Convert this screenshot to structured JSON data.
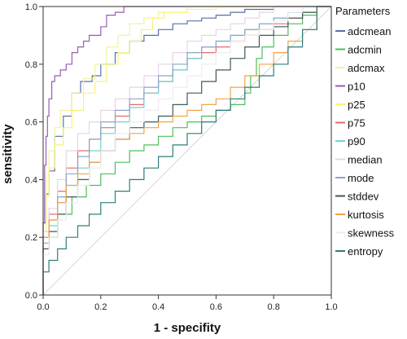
{
  "chart_data": {
    "type": "line",
    "xlabel": "1 - specifity",
    "ylabel": "sensitivity",
    "xlim": [
      0,
      1
    ],
    "ylim": [
      0,
      1
    ],
    "x_ticks": [
      "0.0",
      "0.2",
      "0.4",
      "0.6",
      "0.8",
      "1.0"
    ],
    "y_ticks": [
      "0.0",
      "0.2",
      "0.4",
      "0.6",
      "0.8",
      "1.0"
    ],
    "grid": false,
    "legend": {
      "title": "Parameters",
      "position": "right"
    },
    "reference_line": {
      "x": [
        0,
        1
      ],
      "y": [
        0,
        1
      ],
      "color": "#d6d6d6"
    },
    "series": [
      {
        "name": "adcmean",
        "color": "#5a6fa8",
        "x": [
          0,
          0.01,
          0.02,
          0.04,
          0.07,
          0.1,
          0.13,
          0.17,
          0.2,
          0.25,
          0.3,
          0.35,
          0.4,
          0.45,
          0.5,
          0.55,
          0.6,
          0.65,
          0.7,
          0.8,
          0.9,
          1
        ],
        "y": [
          0,
          0.25,
          0.35,
          0.43,
          0.55,
          0.62,
          0.7,
          0.74,
          0.76,
          0.8,
          0.84,
          0.88,
          0.9,
          0.92,
          0.94,
          0.95,
          0.96,
          0.97,
          0.98,
          0.99,
          1.0,
          1.0
        ]
      },
      {
        "name": "adcmin",
        "color": "#4cbf5a",
        "x": [
          0,
          0.05,
          0.1,
          0.15,
          0.2,
          0.25,
          0.3,
          0.35,
          0.4,
          0.45,
          0.5,
          0.55,
          0.6,
          0.65,
          0.7,
          0.72,
          0.74,
          0.76,
          0.8,
          0.85,
          0.9,
          0.95,
          1
        ],
        "y": [
          0,
          0.2,
          0.28,
          0.34,
          0.38,
          0.42,
          0.46,
          0.5,
          0.52,
          0.55,
          0.58,
          0.6,
          0.62,
          0.64,
          0.66,
          0.7,
          0.76,
          0.82,
          0.86,
          0.9,
          0.94,
          0.97,
          1.0
        ]
      },
      {
        "name": "adcmax",
        "color": "#f2f2a0",
        "x": [
          0,
          0.01,
          0.02,
          0.04,
          0.06,
          0.1,
          0.14,
          0.18,
          0.22,
          0.26,
          0.3,
          0.35,
          0.4,
          0.5,
          0.6,
          0.7,
          0.8,
          1
        ],
        "y": [
          0,
          0.3,
          0.42,
          0.5,
          0.58,
          0.64,
          0.7,
          0.75,
          0.8,
          0.86,
          0.9,
          0.94,
          0.96,
          0.98,
          0.99,
          1.0,
          1.0,
          1.0
        ]
      },
      {
        "name": "p10",
        "color": "#9a5bb5",
        "x": [
          0,
          0.005,
          0.01,
          0.015,
          0.02,
          0.03,
          0.04,
          0.06,
          0.08,
          0.1,
          0.12,
          0.14,
          0.16,
          0.18,
          0.2,
          0.22,
          0.25,
          0.28,
          0.3,
          0.34,
          0.38,
          0.4,
          1
        ],
        "y": [
          0,
          0.25,
          0.45,
          0.55,
          0.62,
          0.68,
          0.74,
          0.76,
          0.78,
          0.8,
          0.84,
          0.86,
          0.88,
          0.9,
          0.9,
          0.93,
          0.97,
          0.98,
          1.0,
          1.0,
          1.0,
          1.0,
          1.0
        ]
      },
      {
        "name": "p25",
        "color": "#f7f27a",
        "x": [
          0,
          0.01,
          0.02,
          0.04,
          0.07,
          0.1,
          0.14,
          0.18,
          0.22,
          0.26,
          0.3,
          0.34,
          0.38,
          0.42,
          0.5,
          0.6,
          0.8,
          1
        ],
        "y": [
          0,
          0.22,
          0.34,
          0.44,
          0.52,
          0.58,
          0.64,
          0.7,
          0.74,
          0.8,
          0.84,
          0.88,
          0.92,
          0.96,
          0.98,
          1.0,
          1.0,
          1.0
        ]
      },
      {
        "name": "p75",
        "color": "#e66a6a",
        "x": [
          0,
          0.02,
          0.05,
          0.08,
          0.12,
          0.16,
          0.2,
          0.25,
          0.3,
          0.35,
          0.4,
          0.45,
          0.5,
          0.55,
          0.6,
          0.65,
          0.7,
          0.75,
          0.8,
          0.85,
          0.9,
          0.95,
          1
        ],
        "y": [
          0,
          0.2,
          0.28,
          0.36,
          0.44,
          0.5,
          0.54,
          0.58,
          0.62,
          0.66,
          0.7,
          0.74,
          0.78,
          0.82,
          0.84,
          0.86,
          0.88,
          0.9,
          0.92,
          0.94,
          0.96,
          0.98,
          1.0
        ]
      },
      {
        "name": "p90",
        "color": "#6fd3d0",
        "x": [
          0,
          0.02,
          0.05,
          0.08,
          0.12,
          0.16,
          0.2,
          0.25,
          0.3,
          0.35,
          0.4,
          0.45,
          0.5,
          0.55,
          0.6,
          0.65,
          0.7,
          0.75,
          0.8,
          0.85,
          0.9,
          1
        ],
        "y": [
          0,
          0.16,
          0.24,
          0.32,
          0.38,
          0.44,
          0.5,
          0.56,
          0.6,
          0.65,
          0.7,
          0.74,
          0.78,
          0.82,
          0.86,
          0.88,
          0.9,
          0.92,
          0.94,
          0.96,
          0.98,
          1.0
        ]
      },
      {
        "name": "median",
        "color": "#e8d4e6",
        "x": [
          0,
          0.02,
          0.05,
          0.08,
          0.12,
          0.16,
          0.2,
          0.25,
          0.3,
          0.35,
          0.4,
          0.45,
          0.5,
          0.55,
          0.6,
          0.65,
          0.7,
          0.75,
          0.8,
          0.9,
          1
        ],
        "y": [
          0,
          0.22,
          0.3,
          0.4,
          0.5,
          0.56,
          0.6,
          0.64,
          0.68,
          0.72,
          0.76,
          0.8,
          0.84,
          0.88,
          0.9,
          0.92,
          0.94,
          0.96,
          0.98,
          1.0,
          1.0
        ]
      },
      {
        "name": "mode",
        "color": "#8ea4c8",
        "x": [
          0,
          0.02,
          0.05,
          0.08,
          0.12,
          0.16,
          0.2,
          0.25,
          0.3,
          0.35,
          0.4,
          0.45,
          0.5,
          0.55,
          0.6,
          0.65,
          0.7,
          0.75,
          0.8,
          0.85,
          0.9,
          1
        ],
        "y": [
          0,
          0.18,
          0.26,
          0.34,
          0.42,
          0.48,
          0.54,
          0.6,
          0.64,
          0.68,
          0.72,
          0.76,
          0.8,
          0.84,
          0.86,
          0.88,
          0.9,
          0.92,
          0.94,
          0.96,
          0.98,
          1.0
        ]
      },
      {
        "name": "stddev",
        "color": "#3e5a55",
        "x": [
          0,
          0.02,
          0.05,
          0.08,
          0.12,
          0.16,
          0.2,
          0.25,
          0.3,
          0.35,
          0.4,
          0.45,
          0.5,
          0.55,
          0.6,
          0.65,
          0.7,
          0.75,
          0.8,
          0.85,
          0.9,
          0.95,
          1
        ],
        "y": [
          0,
          0.16,
          0.22,
          0.28,
          0.34,
          0.4,
          0.46,
          0.5,
          0.54,
          0.58,
          0.6,
          0.62,
          0.66,
          0.7,
          0.74,
          0.78,
          0.82,
          0.86,
          0.9,
          0.93,
          0.96,
          0.98,
          1.0
        ]
      },
      {
        "name": "kurtosis",
        "color": "#f0a44a",
        "x": [
          0,
          0.02,
          0.05,
          0.08,
          0.12,
          0.16,
          0.2,
          0.25,
          0.3,
          0.35,
          0.4,
          0.45,
          0.5,
          0.55,
          0.6,
          0.65,
          0.7,
          0.75,
          0.8,
          0.85,
          0.9,
          0.95,
          1
        ],
        "y": [
          0,
          0.2,
          0.26,
          0.32,
          0.38,
          0.42,
          0.46,
          0.5,
          0.54,
          0.56,
          0.58,
          0.6,
          0.62,
          0.64,
          0.66,
          0.68,
          0.72,
          0.76,
          0.8,
          0.84,
          0.88,
          0.92,
          1.0
        ]
      },
      {
        "name": "skewness",
        "color": "#ececf2",
        "x": [
          0,
          0.02,
          0.05,
          0.08,
          0.12,
          0.16,
          0.2,
          0.25,
          0.3,
          0.35,
          0.4,
          0.45,
          0.5,
          0.55,
          0.6,
          0.65,
          0.7,
          0.75,
          0.8,
          0.85,
          0.9,
          1
        ],
        "y": [
          0,
          0.14,
          0.2,
          0.26,
          0.32,
          0.38,
          0.44,
          0.5,
          0.56,
          0.6,
          0.64,
          0.68,
          0.72,
          0.76,
          0.8,
          0.84,
          0.88,
          0.9,
          0.92,
          0.95,
          0.98,
          1.0
        ]
      },
      {
        "name": "entropy",
        "color": "#2f7d79",
        "x": [
          0,
          0.02,
          0.05,
          0.08,
          0.12,
          0.16,
          0.2,
          0.25,
          0.3,
          0.35,
          0.4,
          0.45,
          0.5,
          0.55,
          0.6,
          0.65,
          0.7,
          0.75,
          0.8,
          0.85,
          0.9,
          0.95,
          1
        ],
        "y": [
          0,
          0.08,
          0.12,
          0.16,
          0.2,
          0.24,
          0.28,
          0.32,
          0.36,
          0.4,
          0.44,
          0.48,
          0.52,
          0.56,
          0.6,
          0.64,
          0.68,
          0.72,
          0.76,
          0.8,
          0.86,
          0.92,
          1.0
        ]
      }
    ]
  }
}
